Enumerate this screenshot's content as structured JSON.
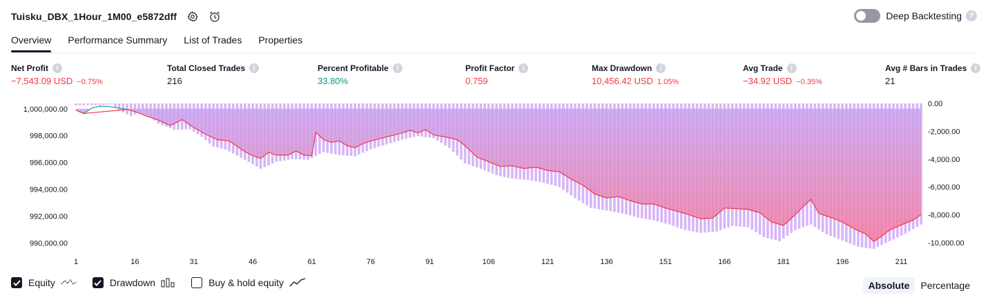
{
  "header": {
    "title": "Tuisku_DBX_1Hour_1M00_e5872dff",
    "deep_backtesting_label": "Deep Backtesting",
    "deep_backtesting_enabled": false,
    "help_glyph": "?"
  },
  "tabs": [
    {
      "label": "Overview",
      "active": true
    },
    {
      "label": "Performance Summary",
      "active": false
    },
    {
      "label": "List of Trades",
      "active": false
    },
    {
      "label": "Properties",
      "active": false
    }
  ],
  "info_glyph": "i",
  "stats": [
    {
      "label": "Net Profit",
      "value": "−7,543.09 USD",
      "pct": "−0.75%",
      "tone": "red"
    },
    {
      "label": "Total Closed Trades",
      "value": "216",
      "pct": "",
      "tone": "neutral"
    },
    {
      "label": "Percent Profitable",
      "value": "33.80%",
      "pct": "",
      "tone": "green"
    },
    {
      "label": "Profit Factor",
      "value": "0.759",
      "pct": "",
      "tone": "red"
    },
    {
      "label": "Max Drawdown",
      "value": "10,456.42 USD",
      "pct": "1.05%",
      "tone": "red"
    },
    {
      "label": "Avg Trade",
      "value": "−34.92 USD",
      "pct": "−0.35%",
      "tone": "red"
    },
    {
      "label": "Avg # Bars in Trades",
      "value": "21",
      "pct": "",
      "tone": "neutral"
    }
  ],
  "legend": {
    "equity_label": "Equity",
    "equity_checked": true,
    "drawdown_label": "Drawdown",
    "drawdown_checked": true,
    "buyhold_label": "Buy & hold equity",
    "buyhold_checked": false
  },
  "modes": {
    "absolute_label": "Absolute",
    "percentage_label": "Percentage",
    "active": "absolute"
  },
  "colors": {
    "equity_line": "#f23645",
    "equity_fill_top": "#c9a4f2",
    "equity_fill_bottom": "#f47a9a",
    "equity_positive": "#22ab94",
    "drawdown_bar": "#d7b6f7",
    "red": "#f23645",
    "green": "#089981"
  },
  "chart_data": {
    "type": "area",
    "x_ticks": [
      1,
      16,
      31,
      46,
      61,
      76,
      91,
      106,
      121,
      136,
      151,
      166,
      181,
      196,
      211
    ],
    "x_range": [
      1,
      216
    ],
    "left_axis": {
      "ticks": [
        "1,000,000.00",
        "998,000.00",
        "996,000.00",
        "994,000.00",
        "992,000.00",
        "990,000.00"
      ],
      "tick_values": [
        1000000,
        998000,
        996000,
        994000,
        992000,
        990000
      ],
      "range": [
        989500,
        1000400
      ]
    },
    "right_axis": {
      "ticks": [
        "0.00",
        "-2,000.00",
        "-4,000.00",
        "-6,000.00",
        "-8,000.00",
        "-10,000.00"
      ],
      "tick_values": [
        0,
        -2000,
        -4000,
        -6000,
        -8000,
        -10000
      ],
      "range": [
        -10500,
        0
      ]
    },
    "series": [
      {
        "type": "line",
        "points": [
          [
            1,
            999900
          ],
          [
            3,
            999650
          ],
          [
            5,
            1000050
          ],
          [
            7,
            1000200
          ],
          [
            9,
            1000180
          ],
          [
            11,
            1000100
          ],
          [
            14,
            999950
          ],
          [
            16,
            999800
          ],
          [
            19,
            999450
          ],
          [
            22,
            999150
          ],
          [
            25,
            998750
          ],
          [
            28,
            999200
          ],
          [
            31,
            998600
          ],
          [
            34,
            998100
          ],
          [
            37,
            997700
          ],
          [
            40,
            997600
          ],
          [
            42,
            997200
          ],
          [
            44,
            996800
          ],
          [
            46,
            996500
          ],
          [
            48,
            996300
          ],
          [
            50,
            996750
          ],
          [
            52,
            996550
          ],
          [
            55,
            996550
          ],
          [
            57,
            996850
          ],
          [
            59,
            996550
          ],
          [
            61,
            996500
          ],
          [
            62,
            998250
          ],
          [
            64,
            997700
          ],
          [
            66,
            997500
          ],
          [
            68,
            997600
          ],
          [
            70,
            997250
          ],
          [
            72,
            997100
          ],
          [
            74,
            997400
          ],
          [
            76,
            997600
          ],
          [
            78,
            997750
          ],
          [
            80,
            997900
          ],
          [
            82,
            998050
          ],
          [
            84,
            998200
          ],
          [
            86,
            998400
          ],
          [
            88,
            998200
          ],
          [
            90,
            998450
          ],
          [
            92,
            998050
          ],
          [
            95,
            997900
          ],
          [
            98,
            997700
          ],
          [
            100,
            997250
          ],
          [
            103,
            996400
          ],
          [
            106,
            996050
          ],
          [
            109,
            995700
          ],
          [
            112,
            995750
          ],
          [
            115,
            995550
          ],
          [
            118,
            995650
          ],
          [
            121,
            995400
          ],
          [
            124,
            995300
          ],
          [
            127,
            994750
          ],
          [
            130,
            994300
          ],
          [
            133,
            993650
          ],
          [
            136,
            993350
          ],
          [
            139,
            993450
          ],
          [
            142,
            993150
          ],
          [
            145,
            992900
          ],
          [
            148,
            992900
          ],
          [
            151,
            992600
          ],
          [
            154,
            992350
          ],
          [
            157,
            992100
          ],
          [
            160,
            991800
          ],
          [
            163,
            991850
          ],
          [
            166,
            992600
          ],
          [
            169,
            992550
          ],
          [
            172,
            992500
          ],
          [
            175,
            992250
          ],
          [
            178,
            991550
          ],
          [
            181,
            991300
          ],
          [
            184,
            992100
          ],
          [
            186,
            992700
          ],
          [
            188,
            993250
          ],
          [
            190,
            992200
          ],
          [
            193,
            991900
          ],
          [
            196,
            991550
          ],
          [
            199,
            991050
          ],
          [
            202,
            990650
          ],
          [
            204,
            990100
          ],
          [
            206,
            990500
          ],
          [
            208,
            990950
          ],
          [
            211,
            991350
          ],
          [
            214,
            991700
          ],
          [
            216,
            992100
          ]
        ]
      },
      {
        "type": "bar",
        "points": [
          [
            1,
            -150
          ],
          [
            10,
            -80
          ],
          [
            12,
            -520
          ],
          [
            15,
            -900
          ],
          [
            18,
            -550
          ],
          [
            22,
            -1450
          ],
          [
            26,
            -1900
          ],
          [
            30,
            -1850
          ],
          [
            33,
            -2400
          ],
          [
            36,
            -3100
          ],
          [
            39,
            -3300
          ],
          [
            42,
            -3750
          ],
          [
            45,
            -4200
          ],
          [
            48,
            -4700
          ],
          [
            52,
            -4200
          ],
          [
            56,
            -4000
          ],
          [
            60,
            -4050
          ],
          [
            64,
            -3500
          ],
          [
            68,
            -3700
          ],
          [
            72,
            -3800
          ],
          [
            76,
            -3300
          ],
          [
            80,
            -2950
          ],
          [
            84,
            -2600
          ],
          [
            88,
            -2350
          ],
          [
            92,
            -2500
          ],
          [
            96,
            -3200
          ],
          [
            100,
            -4300
          ],
          [
            104,
            -4700
          ],
          [
            108,
            -5150
          ],
          [
            112,
            -5400
          ],
          [
            116,
            -5500
          ],
          [
            120,
            -5700
          ],
          [
            124,
            -6000
          ],
          [
            128,
            -6800
          ],
          [
            132,
            -7500
          ],
          [
            136,
            -7700
          ],
          [
            140,
            -7900
          ],
          [
            144,
            -8200
          ],
          [
            148,
            -8400
          ],
          [
            152,
            -8700
          ],
          [
            156,
            -9100
          ],
          [
            160,
            -9300
          ],
          [
            164,
            -9200
          ],
          [
            168,
            -8800
          ],
          [
            172,
            -8900
          ],
          [
            176,
            -9600
          ],
          [
            180,
            -9900
          ],
          [
            184,
            -9100
          ],
          [
            188,
            -8700
          ],
          [
            192,
            -9400
          ],
          [
            196,
            -9850
          ],
          [
            200,
            -10300
          ],
          [
            204,
            -10456
          ],
          [
            208,
            -9900
          ],
          [
            212,
            -9350
          ],
          [
            216,
            -8700
          ]
        ]
      }
    ]
  }
}
